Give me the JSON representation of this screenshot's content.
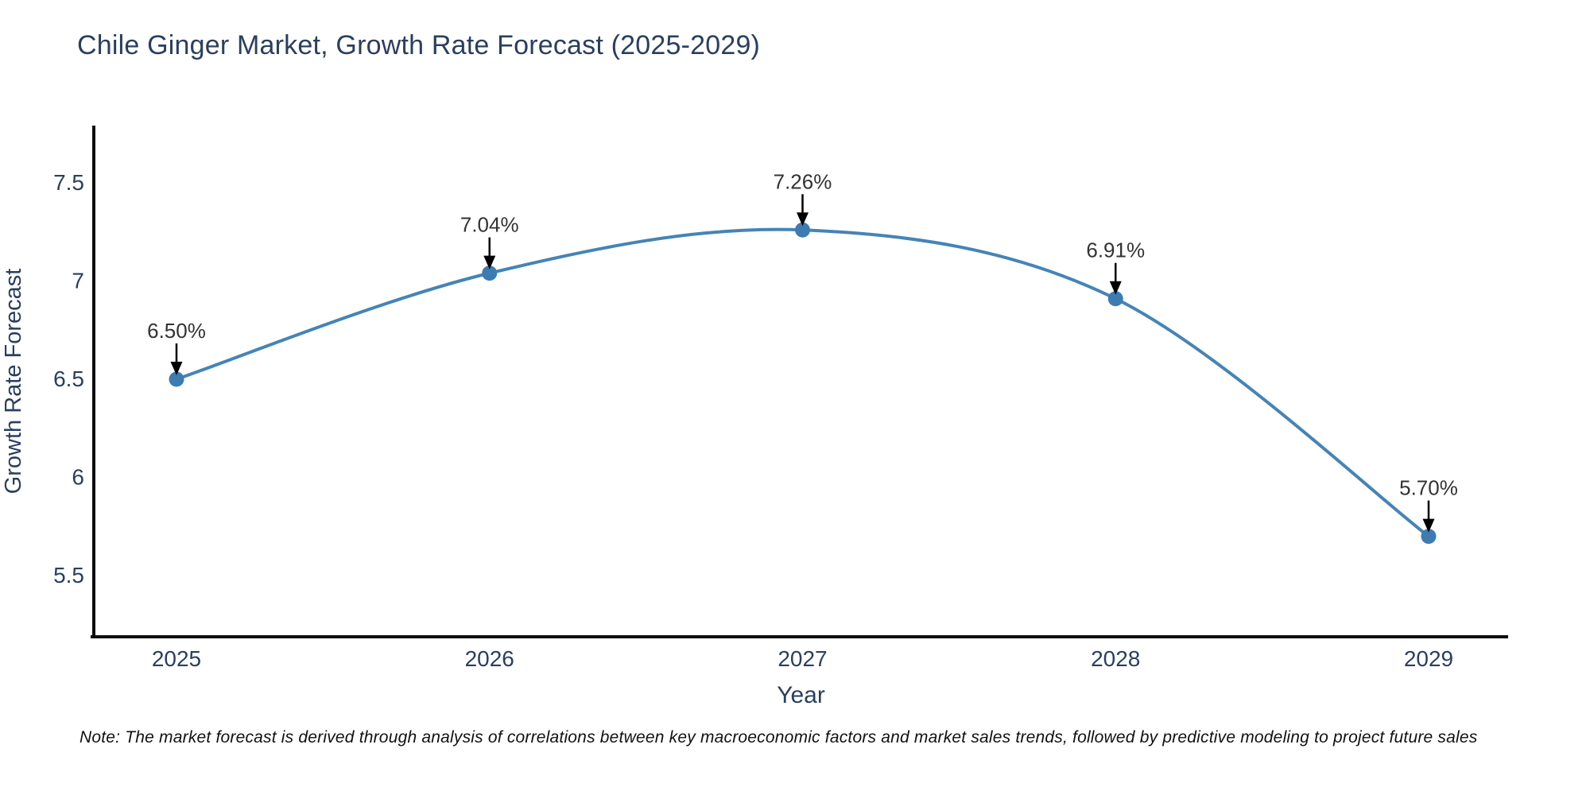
{
  "title": "Chile Ginger Market, Growth Rate Forecast (2025-2029)",
  "note": "Note: The market forecast is derived through analysis of correlations between key macroeconomic factors and market sales trends, followed by predictive modeling to project future sales",
  "chart_data": {
    "type": "line",
    "title": "Chile Ginger Market, Growth Rate Forecast (2025-2029)",
    "categories": [
      "2025",
      "2026",
      "2027",
      "2028",
      "2029"
    ],
    "series": [
      {
        "name": "Growth Rate Forecast",
        "values": [
          6.5,
          7.04,
          7.26,
          6.91,
          5.7
        ],
        "point_labels": [
          "6.50%",
          "7.04%",
          "7.26%",
          "6.91%",
          "5.70%"
        ]
      }
    ],
    "xlabel": "Year",
    "ylabel": "Growth Rate Forecast",
    "yticks": [
      7.5,
      7.0,
      6.5,
      6.0,
      5.5
    ],
    "ytick_labels": [
      "7.5",
      "7",
      "6.5",
      "6",
      "5.5"
    ],
    "ylim": [
      5.19,
      7.79
    ],
    "grid": false,
    "legend": false,
    "line_shape": "spline",
    "annotations": "arrow-down-to-point",
    "colors": {
      "line": "#4584b6",
      "marker": "#3c7cb0",
      "axis_line": "#0d0d0d",
      "tick_text": "#2a3f5f",
      "annotation_text": "#333333",
      "arrow": "#000000"
    }
  }
}
